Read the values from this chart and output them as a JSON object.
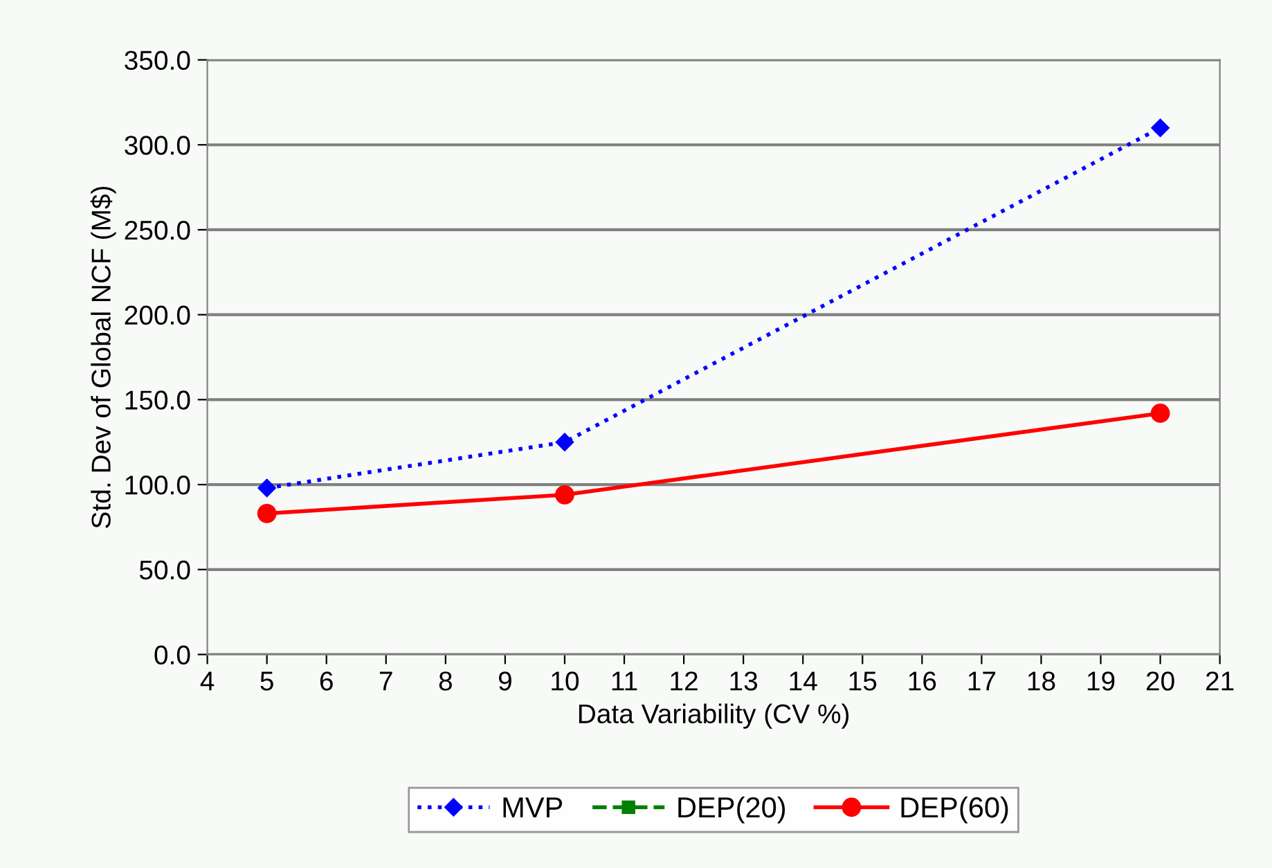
{
  "chart_data": {
    "type": "line",
    "xlabel": "Data Variability (CV %)",
    "ylabel": "Std. Dev of Global NCF (M$)",
    "x": [
      5,
      10,
      20
    ],
    "series": [
      {
        "name": "MVP",
        "color": "#0000ff",
        "values": [
          98,
          125,
          310
        ],
        "marker": "diamond",
        "line_style": "dotted"
      },
      {
        "name": "DEP(20)",
        "color": "#008000",
        "values": [
          null,
          null,
          null
        ],
        "marker": "square",
        "line_style": "dashed"
      },
      {
        "name": "DEP(60)",
        "color": "#ff0000",
        "values": [
          83,
          94,
          142
        ],
        "marker": "circle",
        "line_style": "solid"
      }
    ],
    "xlim": [
      4,
      21
    ],
    "xticks": [
      4,
      5,
      6,
      7,
      8,
      9,
      10,
      11,
      12,
      13,
      14,
      15,
      16,
      17,
      18,
      19,
      20,
      21
    ],
    "ylim": [
      0,
      350
    ],
    "yticks": [
      {
        "value": 0,
        "label": "0.0"
      },
      {
        "value": 50,
        "label": "50.0"
      },
      {
        "value": 100,
        "label": "100.0"
      },
      {
        "value": 150,
        "label": "150.0"
      },
      {
        "value": 200,
        "label": "200.0"
      },
      {
        "value": 250,
        "label": "250.0"
      },
      {
        "value": 300,
        "label": "300.0"
      },
      {
        "value": 350,
        "label": "350.0"
      }
    ],
    "grid": "y",
    "legend": "bottom"
  }
}
